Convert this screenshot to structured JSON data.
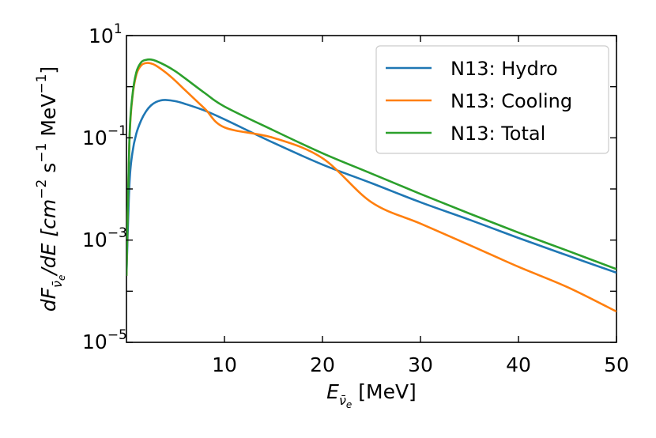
{
  "chart_data": {
    "type": "line",
    "xscale": "linear",
    "yscale": "log",
    "xlim": [
      0,
      50
    ],
    "ylim": [
      1e-05,
      10
    ],
    "xticks": [
      10,
      20,
      30,
      40,
      50
    ],
    "xtick_labels": [
      "10",
      "20",
      "30",
      "40",
      "50"
    ],
    "yticks": [
      1e-05,
      0.001,
      0.1,
      10
    ],
    "ytick_labels": [
      {
        "base": "10",
        "exp": "−5"
      },
      {
        "base": "10",
        "exp": "−3"
      },
      {
        "base": "10",
        "exp": "−1"
      },
      {
        "base": "10",
        "exp": "1"
      }
    ],
    "xlabel": {
      "main": "E",
      "sub": "ν̄",
      "subsub": "e",
      "unit": " [MeV]"
    },
    "ylabel": {
      "pre": "dF",
      "sub": "ν̄",
      "subsub": "e",
      "mid": "/dE [cm",
      "exp1": "−2",
      "mid2": " s",
      "exp2": "−1",
      "mid3": " MeV",
      "exp3": "−1",
      "post": "]"
    },
    "legend_position": "upper-right",
    "series": [
      {
        "name": "N13: Hydro",
        "color": "#1f77b4",
        "x": [
          0,
          0.3,
          0.6,
          1,
          1.5,
          2,
          2.5,
          3,
          3.5,
          4,
          5,
          6,
          8,
          10,
          15,
          20,
          25,
          30,
          35,
          40,
          45,
          50
        ],
        "y": [
          0.0002,
          0.012,
          0.05,
          0.12,
          0.22,
          0.33,
          0.43,
          0.5,
          0.54,
          0.55,
          0.52,
          0.46,
          0.34,
          0.23,
          0.08,
          0.03,
          0.013,
          0.0055,
          0.0025,
          0.0011,
          0.0005,
          0.00023
        ]
      },
      {
        "name": "N13: Cooling",
        "color": "#ff7f0e",
        "x": [
          0,
          0.3,
          0.6,
          1,
          1.5,
          2,
          2.5,
          3,
          4,
          5,
          6,
          8,
          10,
          15,
          20,
          25,
          30,
          35,
          40,
          45,
          50
        ],
        "y": [
          0.0002,
          0.08,
          0.6,
          1.7,
          2.6,
          2.9,
          2.85,
          2.6,
          1.9,
          1.3,
          0.85,
          0.37,
          0.16,
          0.1,
          0.04,
          0.0055,
          0.0021,
          0.0008,
          0.0003,
          0.00012,
          4e-05
        ]
      },
      {
        "name": "N13: Total",
        "color": "#2ca02c",
        "x": [
          0,
          0.3,
          0.6,
          1,
          1.5,
          2,
          2.5,
          3,
          4,
          5,
          6,
          8,
          10,
          15,
          20,
          25,
          30,
          35,
          40,
          45,
          50
        ],
        "y": [
          0.0002,
          0.09,
          0.65,
          1.9,
          3.0,
          3.35,
          3.4,
          3.2,
          2.6,
          2.0,
          1.45,
          0.75,
          0.41,
          0.14,
          0.05,
          0.02,
          0.008,
          0.0033,
          0.0014,
          0.00062,
          0.00027
        ]
      }
    ]
  }
}
